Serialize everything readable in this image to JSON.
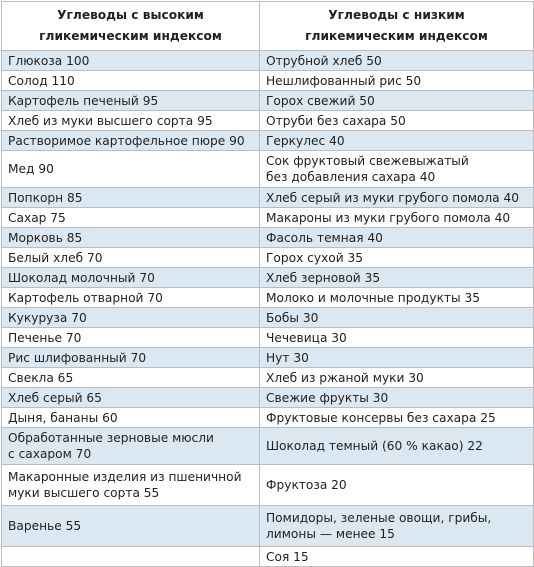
{
  "table": {
    "headers": [
      "Углеводы с высоким\nгликемическим индексом",
      "Углеводы с низким\nгликемическим индексом"
    ],
    "rows": [
      [
        "Глюкоза 100",
        "Отрубной хлеб 50"
      ],
      [
        "Солод 110",
        "Нешлифованный рис 50"
      ],
      [
        "Картофель печеный 95",
        "Горох свежий 50"
      ],
      [
        "Хлеб из муки высшего сорта 95",
        "Отруби без сахара 50"
      ],
      [
        "Растворимое картофельное пюре 90",
        "Геркулес 40"
      ],
      [
        "Мед 90",
        "Сок фруктовый свежевыжатый\nбез добавления сахара 40"
      ],
      [
        "Попкорн 85",
        "Хлеб серый из муки грубого помола 40"
      ],
      [
        "Сахар 75",
        "Макароны из муки грубого помола 40"
      ],
      [
        "Морковь 85",
        "Фасоль темная 40"
      ],
      [
        "Белый хлеб 70",
        "Горох сухой 35"
      ],
      [
        "Шоколад молочный 70",
        "Хлеб зерновой 35"
      ],
      [
        "Картофель отварной 70",
        "Молоко и молочные продукты 35"
      ],
      [
        "Кукуруза 70",
        "Бобы 30"
      ],
      [
        "Печенье 70",
        "Чечевица 30"
      ],
      [
        "Рис шлифованный 70",
        "Нут 30"
      ],
      [
        "Свекла 65",
        "Хлеб из ржаной муки 30"
      ],
      [
        "Хлеб серый 65",
        "Свежие фрукты 30"
      ],
      [
        "Дыня, бананы 60",
        "Фруктовые консервы без сахара 25"
      ],
      [
        "Обработанные зерновые мюсли\nс сахаром 70",
        "Шоколад темный (60 % какао) 22"
      ],
      [
        "Макаронные изделия из пшеничной\nмуки высшего сорта 55",
        "Фруктоза 20"
      ],
      [
        "Варенье 55",
        "Помидоры, зеленые овощи, грибы,\nлимоны — менее 15"
      ],
      [
        "",
        "Соя 15"
      ]
    ]
  }
}
